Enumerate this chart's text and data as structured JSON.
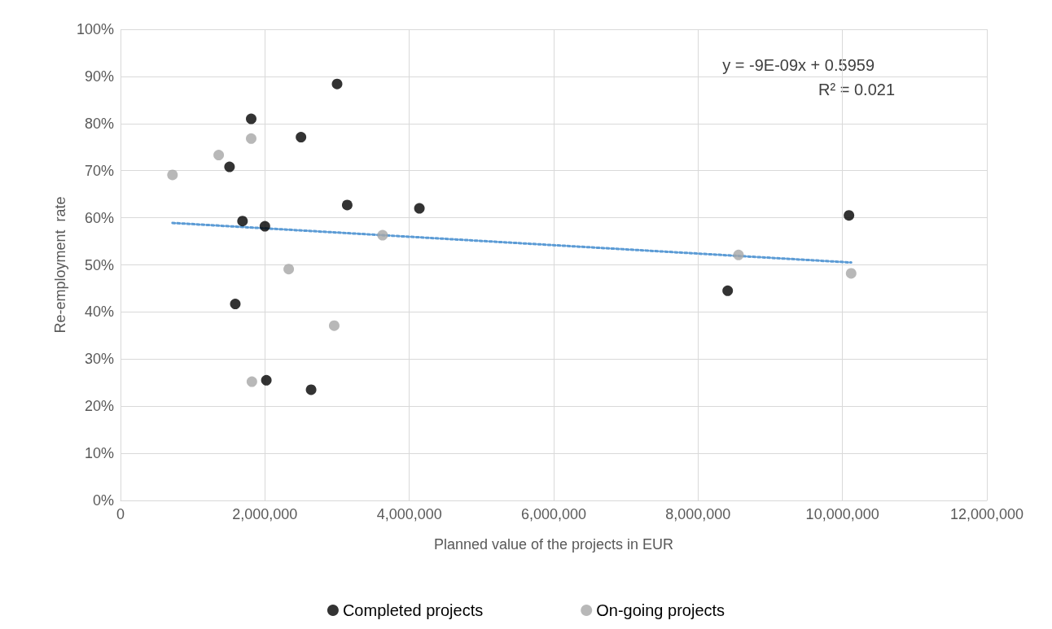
{
  "chart_data": {
    "type": "scatter",
    "xlabel": "Planned value of the projects in EUR",
    "ylabel": "Re-employment  rate",
    "xlim": [
      0,
      12000000
    ],
    "xticks": [
      0,
      {
        "value": 2000000,
        "label": "2,000,000"
      },
      {
        "value": 4000000,
        "label": "4,000,000"
      },
      {
        "value": 6000000,
        "label": "6,000,000"
      },
      {
        "value": 8000000,
        "label": "8,000,000"
      },
      {
        "value": 10000000,
        "label": "10,000,000"
      },
      {
        "value": 12000000,
        "label": "12,000,000"
      }
    ],
    "ylim": [
      0,
      100
    ],
    "yticks": [
      {
        "value": 0,
        "label": "0%"
      },
      {
        "value": 10,
        "label": "10%"
      },
      {
        "value": 20,
        "label": "20%"
      },
      {
        "value": 30,
        "label": "30%"
      },
      {
        "value": 40,
        "label": "40%"
      },
      {
        "value": 50,
        "label": "50%"
      },
      {
        "value": 60,
        "label": "60%"
      },
      {
        "value": 70,
        "label": "70%"
      },
      {
        "value": 80,
        "label": "80%"
      },
      {
        "value": 90,
        "label": "90%"
      },
      {
        "value": 100,
        "label": "100%"
      }
    ],
    "grid": true,
    "legend": "bottom",
    "marker": "circle",
    "annotations": [
      "y = -9E-09x + 0.5959",
      "R² = 0.021"
    ],
    "series": [
      {
        "name": "Completed projects",
        "color": "#000000",
        "x": [
          1810000,
          3000000,
          2500000,
          1510000,
          1690000,
          2000000,
          3140000,
          4140000,
          1590000,
          2020000,
          2640000,
          10090000,
          8410000
        ],
        "values": [
          81.0,
          88.4,
          77.1,
          70.8,
          59.3,
          58.2,
          62.7,
          62.0,
          41.7,
          25.5,
          23.5,
          60.5,
          44.5
        ]
      },
      {
        "name": "On-going projects",
        "color": "#a6a6a6",
        "x": [
          720000,
          1360000,
          1810000,
          2330000,
          2960000,
          1820000,
          3630000,
          8560000,
          10120000
        ],
        "values": [
          69.1,
          73.3,
          76.8,
          49.1,
          37.1,
          25.2,
          56.3,
          52.1,
          48.2
        ]
      },
      {
        "type": "line",
        "color": "#5b9bd5",
        "line_style": "dotted",
        "marker": "none",
        "x": [
          720000,
          10120000
        ],
        "values": [
          58.9,
          50.5
        ]
      }
    ]
  }
}
